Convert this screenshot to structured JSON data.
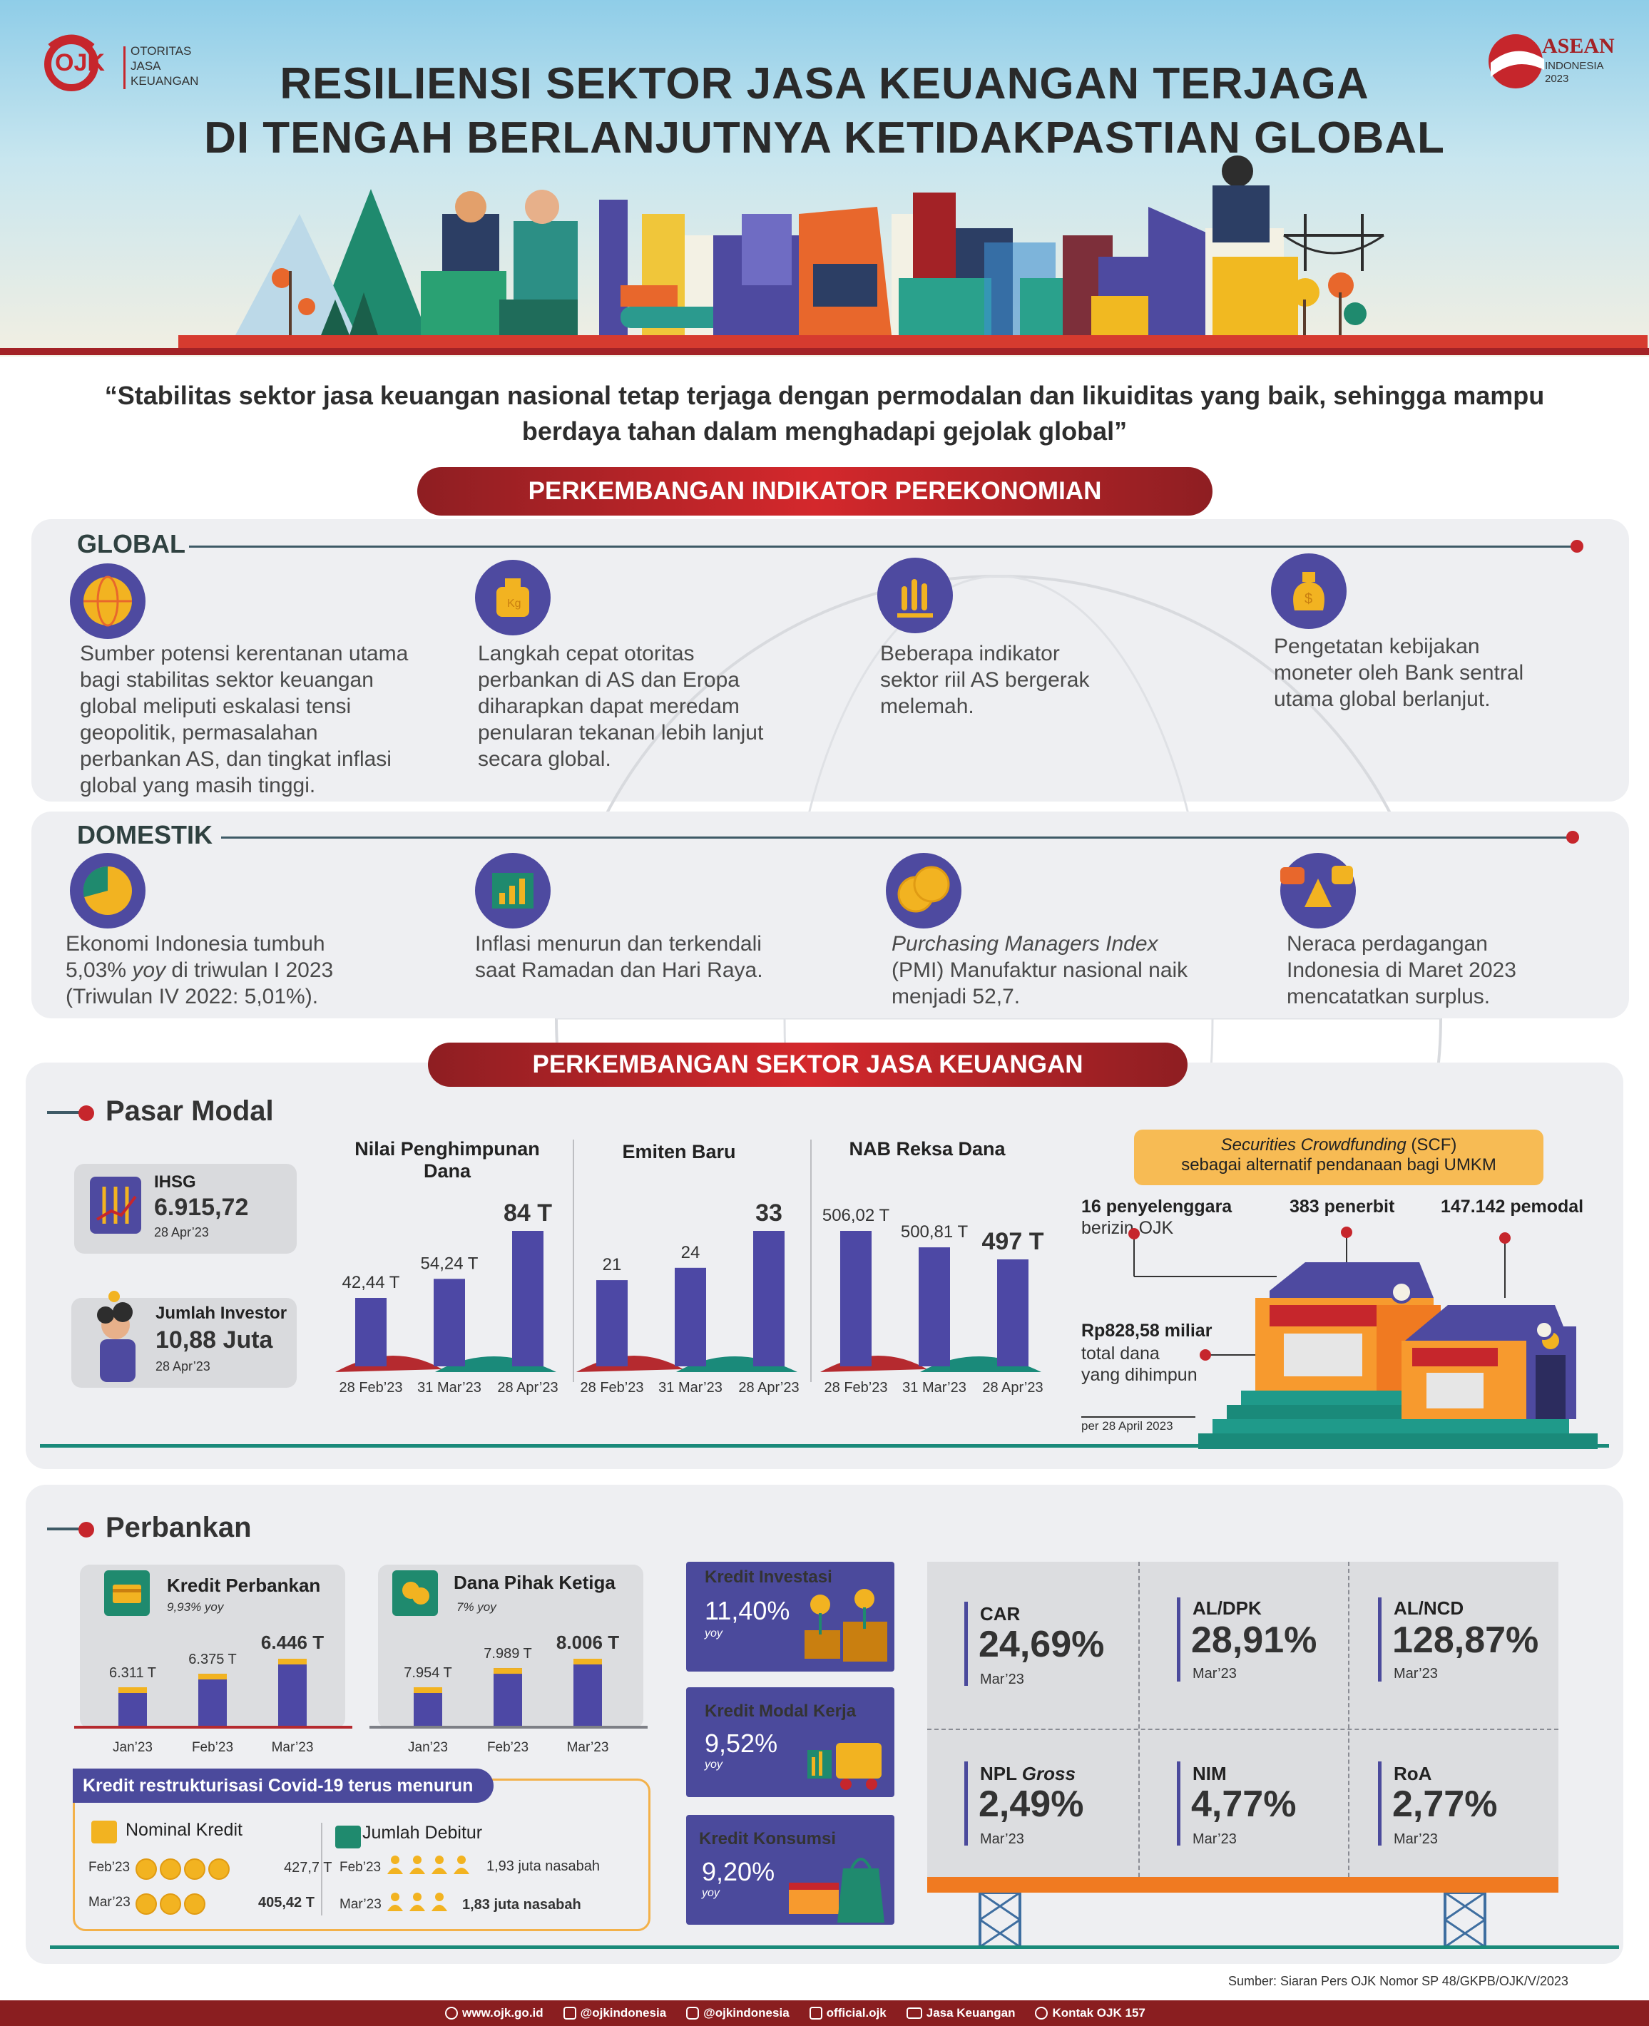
{
  "header": {
    "title_line1": "RESILIENSI SEKTOR JASA KEUANGAN TERJAGA",
    "title_line2": "DI TENGAH BERLANJUTNYA KETIDAKPASTIAN GLOBAL",
    "ojk_logo_text": [
      "OTORITAS",
      "JASA",
      "KEUANGAN"
    ],
    "ojk_mark": "OJK",
    "asean_logo": {
      "name": "ASEAN",
      "country": "INDONESIA",
      "year": "2023"
    }
  },
  "quote": "“Stabilitas sektor jasa keuangan nasional tetap terjaga dengan permodalan dan likuiditas yang baik, sehingga mampu berdaya tahan dalam menghadapi gejolak global”",
  "section1": {
    "banner": "PERKEMBANGAN INDIKATOR PEREKONOMIAN",
    "global": {
      "label": "GLOBAL",
      "items": [
        {
          "icon": "globe-icon",
          "text": "Sumber potensi kerentanan utama bagi stabilitas sektor keuangan global meliputi eskalasi tensi geopolitik, permasalahan perbankan AS, dan tingkat inflasi global yang masih tinggi."
        },
        {
          "icon": "weight-icon",
          "text": "Langkah cepat otoritas perbankan di AS dan Eropa diharapkan dapat meredam penularan tekanan lebih lanjut secara global."
        },
        {
          "icon": "bar-chart-icon",
          "text": "Beberapa indikator sektor riil AS bergerak melemah."
        },
        {
          "icon": "money-bag-icon",
          "text": "Pengetatan kebijakan moneter oleh Bank sentral utama global berlanjut."
        }
      ]
    },
    "domestik": {
      "label": "DOMESTIK",
      "items": [
        {
          "icon": "pie-chart-icon",
          "parts": [
            "Ekonomi Indonesia tumbuh 5,03% ",
            "yoy",
            " di triwulan I 2023 (Triwulan IV 2022: 5,01%)."
          ]
        },
        {
          "icon": "growth-chart-icon",
          "parts": [
            "Inflasi menurun dan terkendali saat Ramadan dan Hari Raya."
          ]
        },
        {
          "icon": "coins-icon",
          "parts": [
            "Purchasing Managers Index",
            " (PMI) Manufaktur nasional naik menjadi 52,7."
          ]
        },
        {
          "icon": "scale-icon",
          "parts": [
            "Neraca perdagangan Indonesia di Maret 2023 mencatatkan surplus."
          ]
        }
      ]
    }
  },
  "section2": {
    "banner": "PERKEMBANGAN SEKTOR JASA KEUANGAN",
    "pasar_modal": {
      "label": "Pasar Modal",
      "ihsg": {
        "label": "IHSG",
        "value": "6.915,72",
        "date": "28 Apr’23"
      },
      "investor": {
        "label": "Jumlah Investor",
        "value": "10,88 Juta",
        "date": "28 Apr’23"
      },
      "charts": [
        {
          "title": "Nilai Penghimpunan Dana",
          "categories": [
            "28 Feb’23",
            "31 Mar’23",
            "28 Apr’23"
          ],
          "values": [
            42.44,
            54.24,
            84
          ],
          "labels": [
            "42,44 T",
            "54,24 T",
            "84 T"
          ]
        },
        {
          "title": "Emiten Baru",
          "categories": [
            "28 Feb’23",
            "31 Mar’23",
            "28 Apr’23"
          ],
          "values": [
            21,
            24,
            33
          ],
          "labels": [
            "21",
            "24",
            "33"
          ]
        },
        {
          "title": "NAB Reksa Dana",
          "categories": [
            "28 Feb’23",
            "31 Mar’23",
            "28 Apr’23"
          ],
          "values": [
            506.02,
            500.81,
            497
          ],
          "labels": [
            "506,02 T",
            "500,81 T",
            "497 T"
          ]
        }
      ],
      "scf": {
        "title_italic": "Securities Crowdfunding",
        "title_rest": " (SCF)",
        "subtitle": "sebagai alternatif pendanaan bagi UMKM",
        "penyelenggara_value": "16 penyelenggara",
        "penyelenggara_rest": "berizin OJK",
        "penerbit": "383 penerbit",
        "pemodal": "147.142 pemodal",
        "dana_value": "Rp828,58 miliar",
        "dana_rest1": "total dana",
        "dana_rest2": "yang dihimpun",
        "as_of": "per 28 April 2023"
      }
    },
    "perbankan": {
      "label": "Perbankan",
      "kredit": {
        "title": "Kredit Perbankan",
        "growth": "9,93% yoy",
        "categories": [
          "Jan’23",
          "Feb’23",
          "Mar’23"
        ],
        "values": [
          6311,
          6375,
          6446
        ],
        "labels": [
          "6.311 T",
          "6.375 T",
          "6.446 T"
        ]
      },
      "dpk": {
        "title": "Dana Pihak Ketiga",
        "growth": "7%  yoy",
        "categories": [
          "Jan’23",
          "Feb’23",
          "Mar’23"
        ],
        "values": [
          7954,
          7989,
          8006
        ],
        "labels": [
          "7.954 T",
          "7.989 T",
          "8.006 T"
        ]
      },
      "restrukturisasi": {
        "title": "Kredit restrukturisasi Covid-19 terus menurun",
        "nominal": {
          "title": "Nominal Kredit",
          "rows": [
            {
              "month": "Feb’23",
              "coins": 4,
              "value": "427,7 T"
            },
            {
              "month": "Mar’23",
              "coins": 3,
              "value": "405,42 T"
            }
          ]
        },
        "debitur": {
          "title": "Jumlah Debitur",
          "rows": [
            {
              "month": "Feb’23",
              "people": 4,
              "value": "1,93 juta nasabah"
            },
            {
              "month": "Mar’23",
              "people": 3,
              "value": "1,83 juta nasabah"
            }
          ]
        }
      },
      "kredit_jenis": [
        {
          "title": "Kredit Investasi",
          "value": "11,40%",
          "sub": "yoy"
        },
        {
          "title": "Kredit Modal Kerja",
          "value": "9,52%",
          "sub": "yoy"
        },
        {
          "title": "Kredit Konsumsi",
          "value": "9,20%",
          "sub": "yoy"
        }
      ],
      "rasio": [
        {
          "label": "CAR",
          "value": "24,69%",
          "date": "Mar’23"
        },
        {
          "label": "AL/DPK",
          "value": "28,91%",
          "date": "Mar’23"
        },
        {
          "label": "AL/NCD",
          "value": "128,87%",
          "date": "Mar’23"
        },
        {
          "label": "NPL ",
          "label_italic": "Gross",
          "value": "2,49%",
          "date": "Mar’23"
        },
        {
          "label": "NIM",
          "value": "4,77%",
          "date": "Mar’23"
        },
        {
          "label": "RoA",
          "value": "2,77%",
          "date": "Mar’23"
        }
      ]
    }
  },
  "source": "Sumber: Siaran Pers OJK Nomor SP 48/GKPB/OJK/V/2023",
  "footer": [
    {
      "icon": "globe-icon",
      "text": "www.ojk.go.id"
    },
    {
      "icon": "twitter-icon",
      "text": "@ojkindonesia"
    },
    {
      "icon": "instagram-icon",
      "text": "@ojkindonesia"
    },
    {
      "icon": "facebook-icon",
      "text": "official.ojk"
    },
    {
      "icon": "youtube-icon",
      "text": "Jasa Keuangan"
    },
    {
      "icon": "phone-icon",
      "text": "Kontak OJK 157"
    }
  ],
  "colors": {
    "primary_red": "#c6262c",
    "purple": "#4d48a5",
    "teal": "#1a8a7a",
    "gold": "#f2b321",
    "panel": "#eeeff2"
  }
}
